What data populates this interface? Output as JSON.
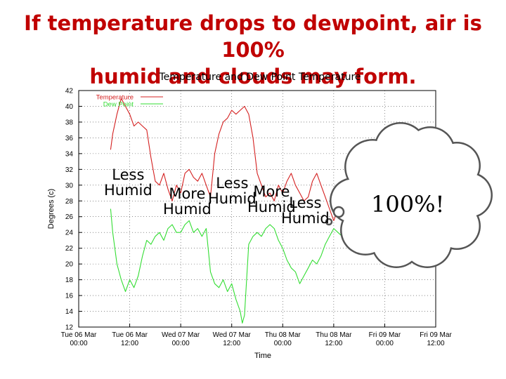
{
  "slide": {
    "title_line1": "If temperature drops to dewpoint, air is 100%",
    "title_line2": "humid and clouds may form."
  },
  "chart_data": {
    "type": "line",
    "title": "Temperature and Dew Point Temperature",
    "xlabel": "Time",
    "ylabel": "Degrees (c)",
    "ylim": [
      12,
      42
    ],
    "yticks": [
      12,
      14,
      16,
      18,
      20,
      22,
      24,
      26,
      28,
      30,
      32,
      34,
      36,
      38,
      40,
      42
    ],
    "xlim": [
      0,
      84
    ],
    "xticks": [
      {
        "x": 0,
        "line1": "Tue 06 Mar",
        "line2": "00:00"
      },
      {
        "x": 12,
        "line1": "Tue 06 Mar",
        "line2": "12:00"
      },
      {
        "x": 24,
        "line1": "Wed 07 Mar",
        "line2": "00:00"
      },
      {
        "x": 36,
        "line1": "Wed 07 Mar",
        "line2": "12:00"
      },
      {
        "x": 48,
        "line1": "Thu 08 Mar",
        "line2": "00:00"
      },
      {
        "x": 60,
        "line1": "Thu 08 Mar",
        "line2": "12:00"
      },
      {
        "x": 72,
        "line1": "Fri 09 Mar",
        "line2": "00:00"
      },
      {
        "x": 84,
        "line1": "Fri 09 Mar",
        "line2": "12:00"
      }
    ],
    "grid": true,
    "legend_position": "top-left",
    "series": [
      {
        "name": "Temperature",
        "color": "#d42020",
        "x": [
          7.5,
          8,
          9,
          10,
          11,
          12,
          13,
          14,
          15,
          16,
          17,
          18,
          19,
          20,
          21,
          22,
          23,
          24,
          25,
          26,
          27,
          28,
          29,
          30,
          31,
          32,
          33,
          34,
          35,
          36,
          37,
          38,
          39,
          40,
          41,
          42,
          43,
          44,
          45,
          46,
          47,
          48,
          49,
          50,
          51,
          52,
          53,
          54,
          55,
          56,
          57,
          58,
          59,
          60,
          61,
          62,
          63,
          64,
          65,
          66,
          67,
          68,
          69,
          70,
          71,
          72,
          73,
          74,
          75,
          76,
          77,
          78
        ],
        "y": [
          34.5,
          36.5,
          39,
          41,
          40,
          39,
          37.5,
          38,
          37.5,
          37,
          33.5,
          30.5,
          30,
          31.5,
          29.5,
          28,
          30,
          29,
          31.5,
          32,
          31,
          30.5,
          31.5,
          30,
          28.5,
          34,
          36.5,
          38,
          38.5,
          39.5,
          39,
          39.5,
          40,
          39,
          36,
          31.5,
          30,
          28.5,
          29,
          28,
          30,
          29,
          30.5,
          31.5,
          30,
          29,
          28,
          28.5,
          30.5,
          31.5,
          30,
          28.5,
          27,
          25.5,
          27,
          28.5,
          28,
          27,
          25,
          24.5,
          24.5,
          24.5,
          24,
          24,
          24,
          24,
          24.2,
          24,
          24,
          23.8,
          23.5,
          23.5
        ]
      },
      {
        "name": "Dew Point",
        "color": "#33dd33",
        "x": [
          7.5,
          8,
          9,
          10,
          11,
          12,
          13,
          14,
          15,
          16,
          17,
          18,
          19,
          20,
          21,
          22,
          23,
          24,
          25,
          26,
          27,
          28,
          29,
          30,
          31,
          32,
          33,
          34,
          35,
          36,
          37,
          38,
          38.5,
          39,
          39.5,
          40,
          41,
          42,
          43,
          44,
          45,
          46,
          47,
          48,
          49,
          50,
          51,
          52,
          53,
          54,
          55,
          56,
          57,
          58,
          59,
          60,
          61,
          62,
          63,
          64,
          65,
          66,
          67,
          68,
          69,
          70,
          71,
          72,
          73,
          74,
          75,
          76,
          77,
          78
        ],
        "y": [
          27,
          24,
          20,
          18,
          16.5,
          18,
          17,
          18.5,
          21,
          23,
          22.5,
          23.5,
          24,
          23,
          24.5,
          25,
          24,
          24,
          25,
          25.5,
          24,
          24.5,
          23.5,
          24.5,
          19,
          17.5,
          17,
          18,
          16.5,
          17.5,
          15.5,
          14,
          12.5,
          13.5,
          18,
          22.5,
          23.5,
          24,
          23.5,
          24.5,
          25,
          24.5,
          23,
          22,
          20.5,
          19.5,
          19,
          17.5,
          18.5,
          19.5,
          20.5,
          20,
          21,
          22.5,
          23.5,
          24.5,
          24,
          23.5,
          23.5,
          23.5,
          24,
          24,
          24,
          24,
          23.8,
          23.5,
          23.5,
          23.5,
          23.5,
          23.5,
          23.2,
          23,
          22.8,
          23.3
        ]
      }
    ],
    "annotations": [
      {
        "key": "a1",
        "line1": "Less",
        "line2": "Humid"
      },
      {
        "key": "a2",
        "line1": "More",
        "line2": "Humid"
      },
      {
        "key": "a3",
        "line1": "Less",
        "line2": "Humid"
      },
      {
        "key": "a4",
        "line1": "More",
        "line2": "Humid"
      },
      {
        "key": "a5",
        "line1": "Less",
        "line2": "Humid"
      }
    ],
    "callout": {
      "text": "100%!",
      "shape": "cloud"
    }
  },
  "colors": {
    "title": "#c00000",
    "temperature": "#d42020",
    "dew_point": "#33dd33",
    "cloud_fill": "#ffffff",
    "cloud_stroke": "#555555"
  }
}
